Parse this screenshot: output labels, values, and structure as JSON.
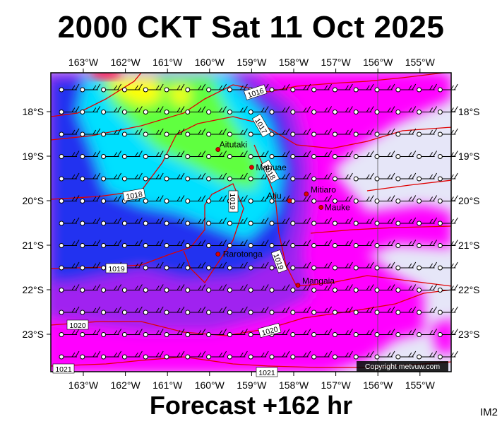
{
  "title": "2000 CKT Sat 11 Oct 2025",
  "footer": "Forecast +162 hr",
  "corner_label": "IM2",
  "copyright": "Copyright metvuw.com",
  "lon_labels": [
    "163°W",
    "162°W",
    "161°W",
    "160°W",
    "159°W",
    "158°W",
    "157°W",
    "156°W",
    "155°W"
  ],
  "lat_labels": [
    "18°S",
    "19°S",
    "20°S",
    "21°S",
    "22°S",
    "23°S"
  ],
  "isobar_labels": [
    "1016",
    "1017",
    "1018",
    "1018",
    "1019",
    "1019",
    "1019",
    "1020",
    "1020",
    "1021",
    "1021"
  ],
  "places": [
    {
      "name": "Aitutaki",
      "lon": -159.8,
      "lat": -18.85
    },
    {
      "name": "Manuae",
      "lon": -159.0,
      "lat": -19.25
    },
    {
      "name": "Atiu",
      "lon": -158.1,
      "lat": -20.0
    },
    {
      "name": "Mitiaro",
      "lon": -157.7,
      "lat": -19.85
    },
    {
      "name": "Mauke",
      "lon": -157.35,
      "lat": -20.15
    },
    {
      "name": "Rarotonga",
      "lon": -159.8,
      "lat": -21.2
    },
    {
      "name": "Mangaia",
      "lon": -157.9,
      "lat": -21.9
    }
  ],
  "colors": {
    "land_bg": "#e6e6f8",
    "magenta": "#ff00ff",
    "purple": "#a020f0",
    "blue": "#2030f0",
    "cyan": "#00e0ff",
    "green": "#60ff40",
    "yellow": "#ffff00",
    "isobar": "#e00000"
  }
}
